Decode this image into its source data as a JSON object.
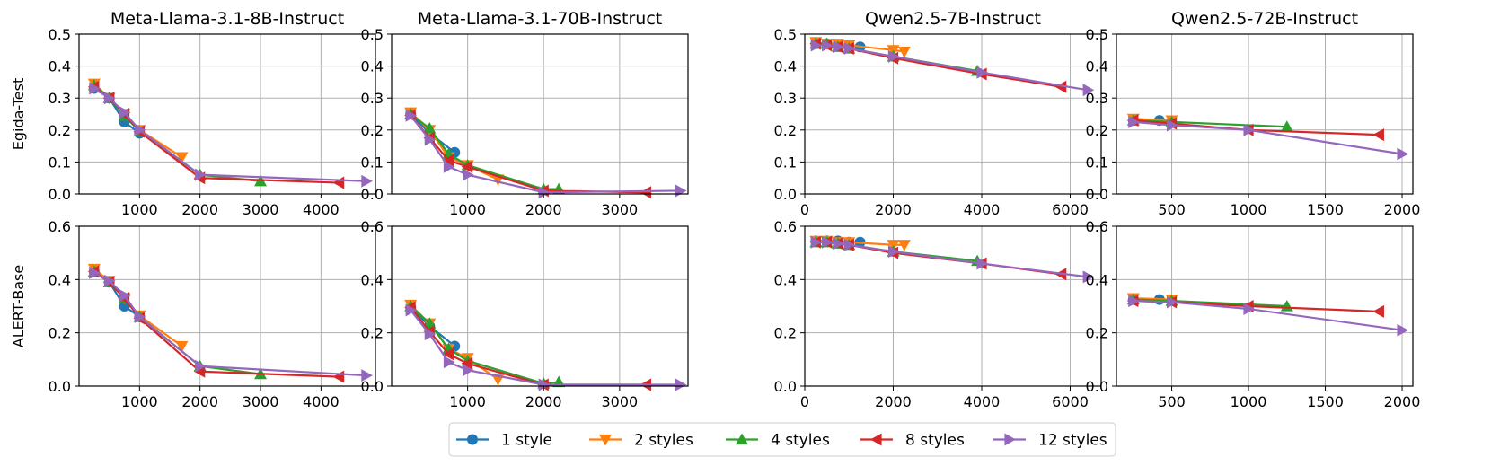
{
  "row_labels": [
    "Egida-Test",
    "ALERT-Base"
  ],
  "legend": [
    {
      "name": "1 style",
      "color": "#1f77b4",
      "marker": "circle"
    },
    {
      "name": "2 styles",
      "color": "#ff7f0e",
      "marker": "triangle-down"
    },
    {
      "name": "4 styles",
      "color": "#2ca02c",
      "marker": "triangle-up"
    },
    {
      "name": "8 styles",
      "color": "#d62728",
      "marker": "triangle-left"
    },
    {
      "name": "12 styles",
      "color": "#9467bd",
      "marker": "triangle-right"
    }
  ],
  "chart_data": [
    {
      "type": "line",
      "title": "Meta-Llama-3.1-8B-Instruct",
      "ylabel": "Egida-Test",
      "xlim": [
        0,
        4900
      ],
      "ylim": [
        0,
        0.5
      ],
      "xticks": [
        1000,
        2000,
        3000,
        4000
      ],
      "yticks": [
        0,
        0.1,
        0.2,
        0.3,
        0.4,
        0.5
      ],
      "series": [
        {
          "name": "1 style",
          "x": [
            250,
            500,
            750,
            1000
          ],
          "y": [
            0.33,
            0.3,
            0.225,
            0.19
          ]
        },
        {
          "name": "2 styles",
          "x": [
            250,
            500,
            750,
            1000,
            1700
          ],
          "y": [
            0.345,
            0.3,
            0.25,
            0.2,
            0.115
          ]
        },
        {
          "name": "4 styles",
          "x": [
            250,
            500,
            750,
            1000,
            2000,
            3000
          ],
          "y": [
            0.34,
            0.3,
            0.245,
            0.195,
            0.06,
            0.04
          ]
        },
        {
          "name": "8 styles",
          "x": [
            250,
            500,
            750,
            1000,
            2000,
            4300
          ],
          "y": [
            0.335,
            0.3,
            0.25,
            0.195,
            0.05,
            0.035
          ]
        },
        {
          "name": "12 styles",
          "x": [
            250,
            500,
            750,
            1000,
            2000,
            4750
          ],
          "y": [
            0.33,
            0.3,
            0.255,
            0.2,
            0.06,
            0.04
          ]
        }
      ]
    },
    {
      "type": "line",
      "title": "Meta-Llama-3.1-70B-Instruct",
      "ylabel": "",
      "xlim": [
        0,
        3900
      ],
      "ylim": [
        0,
        0.5
      ],
      "xticks": [
        1000,
        2000,
        3000
      ],
      "yticks": [
        0,
        0.1,
        0.2,
        0.3,
        0.4,
        0.5
      ],
      "series": [
        {
          "name": "1 style",
          "x": [
            250,
            500,
            830
          ],
          "y": [
            0.25,
            0.19,
            0.13
          ]
        },
        {
          "name": "2 styles",
          "x": [
            250,
            500,
            750,
            1000,
            1400
          ],
          "y": [
            0.255,
            0.2,
            0.115,
            0.09,
            0.045
          ]
        },
        {
          "name": "4 styles",
          "x": [
            250,
            500,
            750,
            1000,
            2000,
            2200
          ],
          "y": [
            0.25,
            0.205,
            0.125,
            0.09,
            0.015,
            0.015
          ]
        },
        {
          "name": "8 styles",
          "x": [
            250,
            500,
            750,
            1000,
            2000,
            3350
          ],
          "y": [
            0.245,
            0.175,
            0.105,
            0.085,
            0.01,
            0.005
          ]
        },
        {
          "name": "12 styles",
          "x": [
            250,
            500,
            750,
            1000,
            2000,
            3800
          ],
          "y": [
            0.245,
            0.17,
            0.085,
            0.06,
            0.005,
            0.01
          ]
        }
      ]
    },
    {
      "type": "line",
      "title": "Qwen2.5-7B-Instruct",
      "ylabel": "",
      "xlim": [
        0,
        6700
      ],
      "ylim": [
        0,
        0.5
      ],
      "xticks": [
        0,
        2000,
        4000,
        6000
      ],
      "yticks": [
        0,
        0.1,
        0.2,
        0.3,
        0.4,
        0.5
      ],
      "series": [
        {
          "name": "1 style",
          "x": [
            250,
            500,
            750,
            1000,
            1250
          ],
          "y": [
            0.47,
            0.47,
            0.465,
            0.465,
            0.46
          ]
        },
        {
          "name": "2 styles",
          "x": [
            250,
            500,
            750,
            1000,
            2000,
            2250
          ],
          "y": [
            0.475,
            0.47,
            0.47,
            0.465,
            0.45,
            0.445
          ]
        },
        {
          "name": "4 styles",
          "x": [
            250,
            500,
            750,
            1000,
            2000,
            3900
          ],
          "y": [
            0.47,
            0.47,
            0.46,
            0.455,
            0.43,
            0.385
          ]
        },
        {
          "name": "8 styles",
          "x": [
            250,
            500,
            750,
            1000,
            2000,
            4000,
            5800
          ],
          "y": [
            0.47,
            0.465,
            0.46,
            0.455,
            0.425,
            0.375,
            0.335
          ]
        },
        {
          "name": "12 styles",
          "x": [
            250,
            500,
            750,
            1000,
            2000,
            4000,
            6400
          ],
          "y": [
            0.465,
            0.465,
            0.46,
            0.455,
            0.43,
            0.38,
            0.325
          ]
        }
      ]
    },
    {
      "type": "line",
      "title": "Qwen2.5-72B-Instruct",
      "ylabel": "",
      "xlim": [
        140,
        2070
      ],
      "ylim": [
        0,
        0.5
      ],
      "xticks": [
        500,
        1000,
        1500,
        2000
      ],
      "yticks": [
        0,
        0.1,
        0.2,
        0.3,
        0.4,
        0.5
      ],
      "series": [
        {
          "name": "1 style",
          "x": [
            250,
            420
          ],
          "y": [
            0.23,
            0.23
          ]
        },
        {
          "name": "2 styles",
          "x": [
            250,
            500
          ],
          "y": [
            0.235,
            0.23
          ]
        },
        {
          "name": "4 styles",
          "x": [
            250,
            500,
            1250
          ],
          "y": [
            0.23,
            0.225,
            0.21
          ]
        },
        {
          "name": "8 styles",
          "x": [
            250,
            500,
            1000,
            1850
          ],
          "y": [
            0.23,
            0.22,
            0.2,
            0.185
          ]
        },
        {
          "name": "12 styles",
          "x": [
            250,
            500,
            1000,
            2000
          ],
          "y": [
            0.225,
            0.215,
            0.2,
            0.125
          ]
        }
      ]
    },
    {
      "type": "line",
      "title": "",
      "ylabel": "ALERT-Base",
      "xlim": [
        0,
        4900
      ],
      "ylim": [
        0,
        0.6
      ],
      "xticks": [
        1000,
        2000,
        3000,
        4000
      ],
      "yticks": [
        0,
        0.2,
        0.4,
        0.6
      ],
      "series": [
        {
          "name": "1 style",
          "x": [
            250,
            500,
            750,
            1000
          ],
          "y": [
            0.43,
            0.39,
            0.3,
            0.26
          ]
        },
        {
          "name": "2 styles",
          "x": [
            250,
            500,
            750,
            1000,
            1700
          ],
          "y": [
            0.44,
            0.395,
            0.33,
            0.265,
            0.15
          ]
        },
        {
          "name": "4 styles",
          "x": [
            250,
            500,
            750,
            1000,
            2000,
            3000
          ],
          "y": [
            0.43,
            0.39,
            0.33,
            0.26,
            0.075,
            0.045
          ]
        },
        {
          "name": "8 styles",
          "x": [
            250,
            500,
            750,
            1000,
            2000,
            4300
          ],
          "y": [
            0.43,
            0.39,
            0.33,
            0.255,
            0.055,
            0.035
          ]
        },
        {
          "name": "12 styles",
          "x": [
            250,
            500,
            750,
            1000,
            2000,
            4750
          ],
          "y": [
            0.425,
            0.395,
            0.34,
            0.26,
            0.075,
            0.04
          ]
        }
      ]
    },
    {
      "type": "line",
      "title": "",
      "ylabel": "",
      "xlim": [
        0,
        3900
      ],
      "ylim": [
        0,
        0.6
      ],
      "xticks": [
        1000,
        2000,
        3000
      ],
      "yticks": [
        0,
        0.2,
        0.4,
        0.6
      ],
      "series": [
        {
          "name": "1 style",
          "x": [
            250,
            500,
            830
          ],
          "y": [
            0.295,
            0.225,
            0.15
          ]
        },
        {
          "name": "2 styles",
          "x": [
            250,
            500,
            750,
            1000,
            1400
          ],
          "y": [
            0.305,
            0.235,
            0.14,
            0.105,
            0.025
          ]
        },
        {
          "name": "4 styles",
          "x": [
            250,
            500,
            750,
            1000,
            2000,
            2200
          ],
          "y": [
            0.3,
            0.235,
            0.14,
            0.095,
            0.01,
            0.015
          ]
        },
        {
          "name": "8 styles",
          "x": [
            250,
            500,
            750,
            1000,
            2000,
            3350
          ],
          "y": [
            0.295,
            0.205,
            0.12,
            0.085,
            0.005,
            0.005
          ]
        },
        {
          "name": "12 styles",
          "x": [
            250,
            500,
            750,
            1000,
            2000,
            3800
          ],
          "y": [
            0.285,
            0.195,
            0.09,
            0.06,
            0.005,
            0.005
          ]
        }
      ]
    },
    {
      "type": "line",
      "title": "",
      "ylabel": "",
      "xlim": [
        0,
        6700
      ],
      "ylim": [
        0,
        0.6
      ],
      "xticks": [
        0,
        2000,
        4000,
        6000
      ],
      "yticks": [
        0,
        0.2,
        0.4,
        0.6
      ],
      "series": [
        {
          "name": "1 style",
          "x": [
            250,
            500,
            750,
            1000,
            1250
          ],
          "y": [
            0.545,
            0.545,
            0.545,
            0.54,
            0.54
          ]
        },
        {
          "name": "2 styles",
          "x": [
            250,
            500,
            750,
            1000,
            2000,
            2250
          ],
          "y": [
            0.545,
            0.545,
            0.54,
            0.54,
            0.53,
            0.53
          ]
        },
        {
          "name": "4 styles",
          "x": [
            250,
            500,
            750,
            1000,
            2000,
            3900
          ],
          "y": [
            0.54,
            0.54,
            0.535,
            0.53,
            0.505,
            0.47
          ]
        },
        {
          "name": "8 styles",
          "x": [
            250,
            500,
            750,
            1000,
            2000,
            4000,
            5800
          ],
          "y": [
            0.54,
            0.54,
            0.535,
            0.53,
            0.5,
            0.46,
            0.42
          ]
        },
        {
          "name": "12 styles",
          "x": [
            250,
            500,
            750,
            1000,
            2000,
            4000,
            6400
          ],
          "y": [
            0.54,
            0.54,
            0.535,
            0.53,
            0.505,
            0.46,
            0.41
          ]
        }
      ]
    },
    {
      "type": "line",
      "title": "",
      "ylabel": "",
      "xlim": [
        140,
        2070
      ],
      "ylim": [
        0,
        0.6
      ],
      "xticks": [
        500,
        1000,
        1500,
        2000
      ],
      "yticks": [
        0,
        0.2,
        0.4,
        0.6
      ],
      "series": [
        {
          "name": "1 style",
          "x": [
            250,
            420
          ],
          "y": [
            0.325,
            0.325
          ]
        },
        {
          "name": "2 styles",
          "x": [
            250,
            500
          ],
          "y": [
            0.33,
            0.325
          ]
        },
        {
          "name": "4 styles",
          "x": [
            250,
            500,
            1250
          ],
          "y": [
            0.325,
            0.32,
            0.3
          ]
        },
        {
          "name": "8 styles",
          "x": [
            250,
            500,
            1000,
            1850
          ],
          "y": [
            0.32,
            0.315,
            0.3,
            0.28
          ]
        },
        {
          "name": "12 styles",
          "x": [
            250,
            500,
            1000,
            2000
          ],
          "y": [
            0.32,
            0.315,
            0.29,
            0.21
          ]
        }
      ]
    }
  ]
}
